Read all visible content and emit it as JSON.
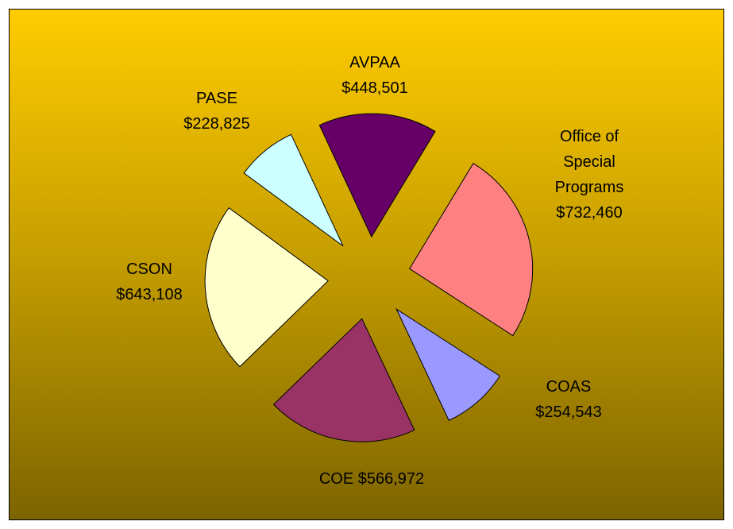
{
  "chart_data": {
    "type": "pie",
    "categories": [
      "AVPAA",
      "Office of Special Programs",
      "COAS",
      "COE",
      "CSON",
      "PASE"
    ],
    "values": [
      448501,
      732460,
      254543,
      566972,
      643108,
      228825
    ],
    "value_labels": [
      "$448,501",
      "$732,460",
      "$254,543",
      "$566,972",
      "$643,108",
      "$228,825"
    ],
    "colors": [
      "#660066",
      "#ff8080",
      "#9999ff",
      "#993366",
      "#ffffcc",
      "#ccffff"
    ],
    "exploded": true
  }
}
